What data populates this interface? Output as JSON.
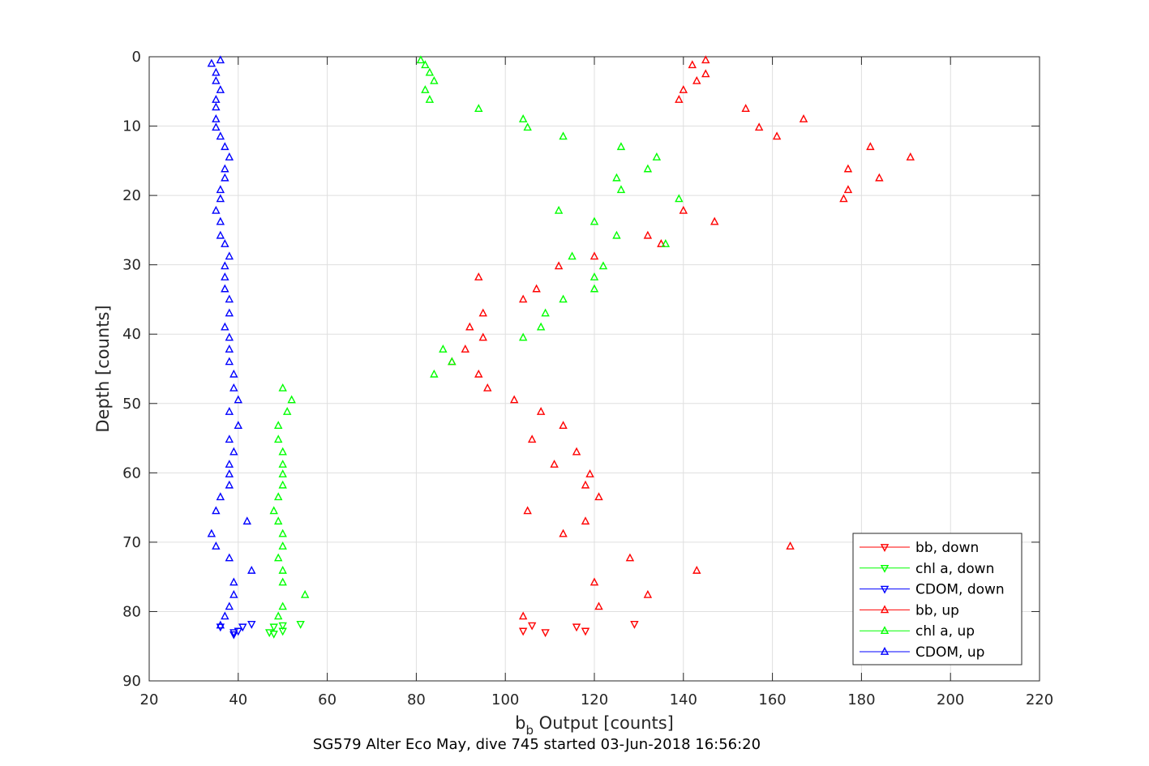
{
  "caption": "SG579 Alter Eco May, dive 745 started 03-Jun-2018 16:56:20",
  "chart_data": {
    "type": "scatter",
    "xlabel_main": "b",
    "xlabel_sub": "b",
    "xlabel_rest": " Output [counts]",
    "ylabel": "Depth [counts]",
    "xlim": [
      20,
      220
    ],
    "ylim": [
      0,
      90
    ],
    "y_reversed": true,
    "grid": true,
    "legend_position": "bottom-right",
    "x_ticks": [
      "20",
      "40",
      "60",
      "80",
      "100",
      "120",
      "140",
      "160",
      "180",
      "200",
      "220"
    ],
    "y_ticks": [
      "0",
      "10",
      "20",
      "30",
      "40",
      "50",
      "60",
      "70",
      "80",
      "90"
    ],
    "colors": {
      "bb": "#ff0000",
      "chl": "#00ff00",
      "cdom": "#0000ff"
    },
    "series": [
      {
        "name": "bb, down",
        "color": "#ff0000",
        "marker": "triangle-down",
        "points": [
          [
            104,
            82.8
          ],
          [
            106,
            82.0
          ],
          [
            109,
            83.0
          ],
          [
            116,
            82.2
          ],
          [
            118,
            82.8
          ],
          [
            129,
            81.8
          ]
        ]
      },
      {
        "name": "chl a, down",
        "color": "#00ff00",
        "marker": "triangle-down",
        "points": [
          [
            47,
            83.0
          ],
          [
            48,
            82.2
          ],
          [
            48,
            83.2
          ],
          [
            50,
            82.0
          ],
          [
            50,
            82.8
          ],
          [
            54,
            81.8
          ]
        ]
      },
      {
        "name": "CDOM, down",
        "color": "#0000ff",
        "marker": "triangle-down",
        "points": [
          [
            36,
            82.2
          ],
          [
            39,
            83.0
          ],
          [
            39,
            83.3
          ],
          [
            40,
            82.8
          ],
          [
            41,
            82.2
          ],
          [
            43,
            81.8
          ]
        ]
      },
      {
        "name": "bb, up",
        "color": "#ff0000",
        "marker": "triangle-up",
        "points": [
          [
            145,
            0.5
          ],
          [
            142,
            1.2
          ],
          [
            145,
            2.5
          ],
          [
            143,
            3.5
          ],
          [
            140,
            4.8
          ],
          [
            139,
            6.2
          ],
          [
            154,
            7.5
          ],
          [
            167,
            9.0
          ],
          [
            157,
            10.2
          ],
          [
            161,
            11.5
          ],
          [
            182,
            13.0
          ],
          [
            191,
            14.5
          ],
          [
            177,
            16.2
          ],
          [
            184,
            17.5
          ],
          [
            177,
            19.2
          ],
          [
            176,
            20.5
          ],
          [
            140,
            22.2
          ],
          [
            147,
            23.8
          ],
          [
            132,
            25.8
          ],
          [
            135,
            27.0
          ],
          [
            120,
            28.8
          ],
          [
            112,
            30.2
          ],
          [
            94,
            31.8
          ],
          [
            107,
            33.5
          ],
          [
            104,
            35.0
          ],
          [
            95,
            37.0
          ],
          [
            92,
            39.0
          ],
          [
            95,
            40.5
          ],
          [
            91,
            42.2
          ],
          [
            88,
            44.0
          ],
          [
            94,
            45.8
          ],
          [
            96,
            47.8
          ],
          [
            102,
            49.5
          ],
          [
            108,
            51.2
          ],
          [
            113,
            53.2
          ],
          [
            106,
            55.2
          ],
          [
            116,
            57.0
          ],
          [
            111,
            58.8
          ],
          [
            119,
            60.2
          ],
          [
            118,
            61.8
          ],
          [
            121,
            63.5
          ],
          [
            105,
            65.5
          ],
          [
            118,
            67.0
          ],
          [
            113,
            68.8
          ],
          [
            164,
            70.6
          ],
          [
            128,
            72.3
          ],
          [
            143,
            74.1
          ],
          [
            120,
            75.8
          ],
          [
            132,
            77.6
          ],
          [
            121,
            79.3
          ],
          [
            104,
            80.7
          ]
        ]
      },
      {
        "name": "chl a, up",
        "color": "#00ff00",
        "marker": "triangle-up",
        "points": [
          [
            81,
            0.5
          ],
          [
            82,
            1.2
          ],
          [
            83,
            2.3
          ],
          [
            84,
            3.5
          ],
          [
            82,
            4.8
          ],
          [
            83,
            6.2
          ],
          [
            94,
            7.5
          ],
          [
            104,
            9.0
          ],
          [
            105,
            10.2
          ],
          [
            113,
            11.5
          ],
          [
            126,
            13.0
          ],
          [
            134,
            14.5
          ],
          [
            132,
            16.2
          ],
          [
            125,
            17.5
          ],
          [
            126,
            19.2
          ],
          [
            139,
            20.5
          ],
          [
            112,
            22.2
          ],
          [
            120,
            23.8
          ],
          [
            125,
            25.8
          ],
          [
            136,
            27.0
          ],
          [
            115,
            28.8
          ],
          [
            122,
            30.2
          ],
          [
            120,
            31.8
          ],
          [
            120,
            33.5
          ],
          [
            113,
            35.0
          ],
          [
            109,
            37.0
          ],
          [
            108,
            39.0
          ],
          [
            104,
            40.5
          ],
          [
            86,
            42.2
          ],
          [
            88,
            44.0
          ],
          [
            84,
            45.8
          ],
          [
            50,
            47.8
          ],
          [
            52,
            49.5
          ],
          [
            51,
            51.2
          ],
          [
            49,
            53.2
          ],
          [
            49,
            55.2
          ],
          [
            50,
            57.0
          ],
          [
            50,
            58.8
          ],
          [
            50,
            60.2
          ],
          [
            50,
            61.8
          ],
          [
            49,
            63.5
          ],
          [
            48,
            65.5
          ],
          [
            49,
            67.0
          ],
          [
            50,
            68.8
          ],
          [
            50,
            70.6
          ],
          [
            49,
            72.3
          ],
          [
            50,
            74.1
          ],
          [
            50,
            75.8
          ],
          [
            55,
            77.6
          ],
          [
            50,
            79.3
          ],
          [
            49,
            80.7
          ]
        ]
      },
      {
        "name": "CDOM, up",
        "color": "#0000ff",
        "marker": "triangle-up",
        "points": [
          [
            36,
            0.5
          ],
          [
            34,
            1.0
          ],
          [
            35,
            2.3
          ],
          [
            35,
            3.5
          ],
          [
            36,
            4.8
          ],
          [
            35,
            6.2
          ],
          [
            35,
            7.3
          ],
          [
            35,
            9.0
          ],
          [
            35,
            10.2
          ],
          [
            36,
            11.5
          ],
          [
            37,
            13.0
          ],
          [
            38,
            14.5
          ],
          [
            37,
            16.2
          ],
          [
            37,
            17.5
          ],
          [
            36,
            19.2
          ],
          [
            36,
            20.5
          ],
          [
            35,
            22.2
          ],
          [
            36,
            23.8
          ],
          [
            36,
            25.8
          ],
          [
            37,
            27.0
          ],
          [
            38,
            28.8
          ],
          [
            37,
            30.2
          ],
          [
            37,
            31.8
          ],
          [
            37,
            33.5
          ],
          [
            38,
            35.0
          ],
          [
            38,
            37.0
          ],
          [
            37,
            39.0
          ],
          [
            38,
            40.5
          ],
          [
            38,
            42.2
          ],
          [
            38,
            44.0
          ],
          [
            39,
            45.8
          ],
          [
            39,
            47.8
          ],
          [
            40,
            49.5
          ],
          [
            38,
            51.2
          ],
          [
            40,
            53.2
          ],
          [
            38,
            55.2
          ],
          [
            39,
            57.0
          ],
          [
            38,
            58.8
          ],
          [
            38,
            60.2
          ],
          [
            38,
            61.8
          ],
          [
            36,
            63.5
          ],
          [
            35,
            65.5
          ],
          [
            42,
            67.0
          ],
          [
            34,
            68.8
          ],
          [
            35,
            70.6
          ],
          [
            38,
            72.3
          ],
          [
            43,
            74.1
          ],
          [
            39,
            75.8
          ],
          [
            39,
            77.6
          ],
          [
            38,
            79.3
          ],
          [
            37,
            80.7
          ],
          [
            36,
            82.0
          ]
        ]
      }
    ]
  }
}
